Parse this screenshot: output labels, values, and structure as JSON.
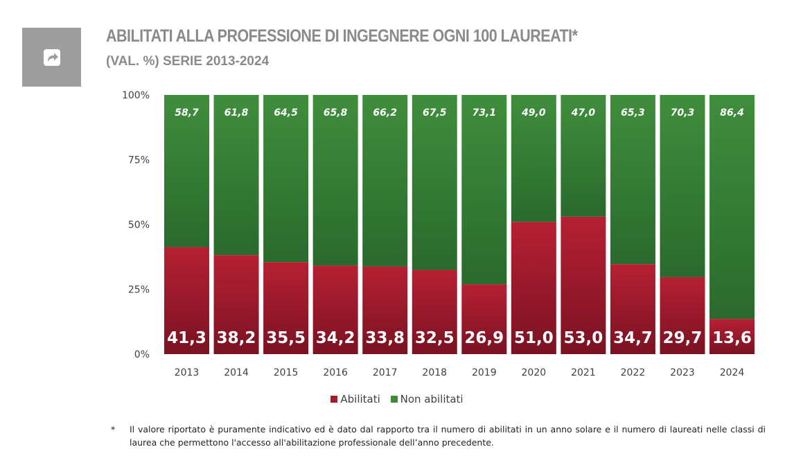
{
  "header": {
    "title": "ABILITATI ALLA PROFESSIONE DI INGEGNERE OGNI 100 LAUREATI*",
    "subtitle": "(VAL. %) SERIE 2013-2024"
  },
  "icon": {
    "name": "share-arrow-icon"
  },
  "colors": {
    "abilitati": "#a71a2c",
    "non_abilitati": "#3f8b3b",
    "label_light": "#ffffff"
  },
  "chart_data": {
    "type": "bar",
    "stacked": true,
    "percent": true,
    "categories": [
      "2013",
      "2014",
      "2015",
      "2016",
      "2017",
      "2018",
      "2019",
      "2020",
      "2021",
      "2022",
      "2023",
      "2024"
    ],
    "series": [
      {
        "name": "Abilitati",
        "values": [
          41.3,
          38.2,
          35.5,
          34.2,
          33.8,
          32.5,
          26.9,
          51.0,
          53.0,
          34.7,
          29.7,
          13.6
        ]
      },
      {
        "name": "Non abilitati",
        "values": [
          58.7,
          61.8,
          64.5,
          65.8,
          66.2,
          67.5,
          73.1,
          49.0,
          47.0,
          65.3,
          70.3,
          86.4
        ]
      }
    ],
    "y_ticks": [
      "0%",
      "25%",
      "50%",
      "75%",
      "100%"
    ],
    "ylim": [
      0,
      100
    ],
    "legend_position": "bottom",
    "grid": false
  },
  "footnote": {
    "marker": "*",
    "text": "Il valore riportato è puramente indicativo ed è dato dal rapporto tra il numero di abilitati in un anno solare e il numero di laureati nelle classi di laurea che permettono l'accesso all'abilitazione professionale dell’anno precedente."
  }
}
